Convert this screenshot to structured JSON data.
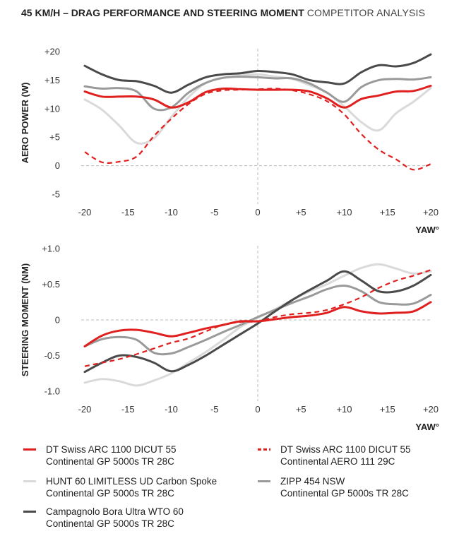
{
  "title": {
    "bold": "45 KM/H – DRAG PERFORMANCE AND STEERING MOMENT",
    "light": "COMPETITOR ANALYSIS"
  },
  "series_styles": [
    {
      "name": "DT Swiss ARC 1100 DICUT 55 / Continental GP 5000s TR 28C",
      "color": "#e0201f",
      "dash": "solid"
    },
    {
      "name": "DT Swiss ARC 1100 DICUT 55 / Continental AERO 111 29C",
      "color": "#e0201f",
      "dash": "dashed"
    },
    {
      "name": "HUNT 60 LIMITLESS UD Carbon Spoke / Continental GP 5000s TR 28C",
      "color": "#dadada",
      "dash": "solid"
    },
    {
      "name": "ZIPP 454 NSW / Continental GP 5000s TR 28C",
      "color": "#9a9a9a",
      "dash": "solid"
    },
    {
      "name": "Campagnolo Bora Ultra WTO 60 / Continental GP 5000s TR 28C",
      "color": "#4a4a4a",
      "dash": "solid"
    }
  ],
  "legend": [
    {
      "line1": "DT Swiss ARC 1100 DICUT 55",
      "line2": "Continental GP 5000s TR 28C",
      "color": "#e0201f",
      "dash": "solid"
    },
    {
      "line1": "DT Swiss ARC 1100 DICUT 55",
      "line2": "Continental AERO 111 29C",
      "color": "#e0201f",
      "dash": "dashed"
    },
    {
      "line1": "HUNT 60 LIMITLESS UD Carbon Spoke",
      "line2": "Continental GP 5000s TR 28C",
      "color": "#dadada",
      "dash": "solid"
    },
    {
      "line1": "ZIPP 454 NSW",
      "line2": "Continental GP 5000s TR 28C",
      "color": "#9a9a9a",
      "dash": "solid"
    },
    {
      "line1": "Campagnolo Bora Ultra WTO 60",
      "line2": "Continental GP 5000s TR 28C",
      "color": "#4a4a4a",
      "dash": "solid"
    }
  ],
  "chart_data": [
    {
      "type": "line",
      "ylabel": "AERO POWER (W)",
      "xlabel": "YAW°",
      "xlim": [
        -20,
        20
      ],
      "ylim": [
        -5,
        20
      ],
      "x_ticks": [
        -20,
        -15,
        -10,
        -5,
        0,
        5,
        10,
        15,
        20
      ],
      "x_tick_labels": [
        "-20",
        "-15",
        "-10",
        "-5",
        "0",
        "+5",
        "+10",
        "+15",
        "+20"
      ],
      "y_ticks": [
        20,
        15,
        10,
        5,
        0,
        -5
      ],
      "y_tick_labels": [
        "+20",
        "+15",
        "+10",
        "+5",
        "0",
        "-5"
      ],
      "series": [
        {
          "name": "DT Swiss ARC 1100 DICUT 55 / Continental GP 5000s TR 28C",
          "x": [
            -20,
            -18,
            -16,
            -14,
            -12,
            -10,
            -8,
            -6,
            -4,
            -2,
            0,
            2,
            4,
            6,
            8,
            10,
            12,
            14,
            16,
            18,
            20
          ],
          "y": [
            13,
            12.1,
            12.1,
            12.1,
            11.6,
            10.2,
            11.1,
            12.9,
            13.5,
            13.4,
            13.3,
            13.3,
            13.3,
            13,
            11.8,
            10.2,
            11.7,
            12.3,
            13,
            13.1,
            14
          ]
        },
        {
          "name": "DT Swiss ARC 1100 DICUT 55 / Continental AERO 111 29C",
          "x": [
            -20,
            -18,
            -16,
            -14,
            -12,
            -10,
            -8,
            -6,
            -4,
            -2,
            0,
            2,
            4,
            6,
            8,
            10,
            12,
            14,
            16,
            18,
            20
          ],
          "y": [
            2.4,
            0.6,
            0.7,
            1.6,
            5.2,
            8.2,
            10.8,
            12.6,
            13.2,
            13.3,
            13.4,
            13.5,
            13.2,
            12.5,
            11.3,
            9,
            5.5,
            2.8,
            1.1,
            -0.7,
            0.3
          ]
        },
        {
          "name": "HUNT 60 LIMITLESS UD Carbon Spoke / Continental GP 5000s TR 28C",
          "x": [
            -20,
            -18,
            -16,
            -14,
            -12,
            -10,
            -8,
            -6,
            -4,
            -2,
            0,
            2,
            4,
            6,
            8,
            10,
            12,
            14,
            16,
            18,
            20
          ],
          "y": [
            11.6,
            9.8,
            7,
            4,
            4.8,
            8.5,
            12,
            14.5,
            15.4,
            15.8,
            16,
            15.6,
            15.2,
            14.1,
            12.8,
            10.4,
            7.6,
            6.2,
            9.2,
            11.2,
            13.6
          ]
        },
        {
          "name": "ZIPP 454 NSW / Continental GP 5000s TR 28C",
          "x": [
            -20,
            -18,
            -16,
            -14,
            -12,
            -10,
            -8,
            -6,
            -4,
            -2,
            0,
            2,
            4,
            6,
            8,
            10,
            12,
            14,
            16,
            18,
            20
          ],
          "y": [
            13.9,
            13.5,
            13.6,
            13,
            10,
            10.2,
            12.8,
            14.5,
            15.4,
            15.6,
            15.5,
            15.3,
            15.3,
            14.4,
            12.8,
            11.2,
            13.8,
            15,
            15.2,
            15.1,
            15.5
          ]
        },
        {
          "name": "Campagnolo Bora Ultra WTO 60 / Continental GP 5000s TR 28C",
          "x": [
            -20,
            -18,
            -16,
            -14,
            -12,
            -10,
            -8,
            -6,
            -4,
            -2,
            0,
            2,
            4,
            6,
            8,
            10,
            12,
            14,
            16,
            18,
            20
          ],
          "y": [
            17.5,
            16,
            15,
            14.8,
            14,
            12.8,
            14.2,
            15.5,
            16,
            16.2,
            16.6,
            16.4,
            16,
            15,
            14.6,
            14.4,
            16.4,
            17.6,
            17.4,
            18,
            19.5
          ]
        }
      ]
    },
    {
      "type": "line",
      "ylabel": "STEERING MOMENT (NM)",
      "xlabel": "YAW°",
      "xlim": [
        -20,
        20
      ],
      "ylim": [
        -1.0,
        1.0
      ],
      "x_ticks": [
        -20,
        -15,
        -10,
        -5,
        0,
        5,
        10,
        15,
        20
      ],
      "x_tick_labels": [
        "-20",
        "-15",
        "-10",
        "-5",
        "0",
        "+5",
        "+10",
        "+15",
        "+20"
      ],
      "y_ticks": [
        1.0,
        0.5,
        0,
        -0.5,
        -1.0
      ],
      "y_tick_labels": [
        "+1.0",
        "+0.5",
        "0",
        "-0.5",
        "-1.0"
      ],
      "series": [
        {
          "name": "DT Swiss ARC 1100 DICUT 55 / Continental GP 5000s TR 28C",
          "x": [
            -20,
            -18,
            -16,
            -14,
            -12,
            -10,
            -8,
            -6,
            -4,
            -2,
            0,
            2,
            4,
            6,
            8,
            10,
            12,
            14,
            16,
            18,
            20
          ],
          "y": [
            -0.37,
            -0.22,
            -0.15,
            -0.14,
            -0.18,
            -0.23,
            -0.18,
            -0.12,
            -0.07,
            -0.02,
            -0.02,
            0.01,
            0.04,
            0.06,
            0.1,
            0.18,
            0.12,
            0.09,
            0.1,
            0.12,
            0.25
          ]
        },
        {
          "name": "DT Swiss ARC 1100 DICUT 55 / Continental AERO 111 29C",
          "x": [
            -20,
            -18,
            -16,
            -14,
            -12,
            -10,
            -8,
            -6,
            -4,
            -2,
            0,
            2,
            4,
            6,
            8,
            10,
            12,
            14,
            16,
            18,
            20
          ],
          "y": [
            -0.65,
            -0.6,
            -0.55,
            -0.48,
            -0.4,
            -0.32,
            -0.26,
            -0.16,
            -0.07,
            -0.03,
            -0.02,
            0.04,
            0.08,
            0.1,
            0.14,
            0.22,
            0.32,
            0.45,
            0.55,
            0.62,
            0.7
          ]
        },
        {
          "name": "HUNT 60 LIMITLESS UD Carbon Spoke / Continental GP 5000s TR 28C",
          "x": [
            -20,
            -18,
            -16,
            -14,
            -12,
            -10,
            -8,
            -6,
            -4,
            -2,
            0,
            2,
            4,
            6,
            8,
            10,
            12,
            14,
            16,
            18,
            20
          ],
          "y": [
            -0.88,
            -0.83,
            -0.86,
            -0.92,
            -0.85,
            -0.75,
            -0.6,
            -0.45,
            -0.28,
            -0.1,
            0.03,
            0.15,
            0.28,
            0.4,
            0.5,
            0.62,
            0.73,
            0.78,
            0.72,
            0.65,
            0.68
          ]
        },
        {
          "name": "ZIPP 454 NSW / Continental GP 5000s TR 28C",
          "x": [
            -20,
            -18,
            -16,
            -14,
            -12,
            -10,
            -8,
            -6,
            -4,
            -2,
            0,
            2,
            4,
            6,
            8,
            10,
            12,
            14,
            16,
            18,
            20
          ],
          "y": [
            -0.37,
            -0.27,
            -0.24,
            -0.28,
            -0.46,
            -0.47,
            -0.38,
            -0.28,
            -0.17,
            -0.07,
            0.04,
            0.14,
            0.24,
            0.33,
            0.43,
            0.48,
            0.4,
            0.25,
            0.22,
            0.23,
            0.35
          ]
        },
        {
          "name": "Campagnolo Bora Ultra WTO 60 / Continental GP 5000s TR 28C",
          "x": [
            -20,
            -18,
            -16,
            -14,
            -12,
            -10,
            -8,
            -6,
            -4,
            -2,
            0,
            2,
            4,
            6,
            8,
            10,
            12,
            14,
            16,
            18,
            20
          ],
          "y": [
            -0.73,
            -0.6,
            -0.5,
            -0.52,
            -0.6,
            -0.72,
            -0.63,
            -0.5,
            -0.35,
            -0.2,
            -0.05,
            0.12,
            0.28,
            0.42,
            0.55,
            0.68,
            0.55,
            0.4,
            0.4,
            0.48,
            0.63
          ]
        }
      ]
    }
  ]
}
